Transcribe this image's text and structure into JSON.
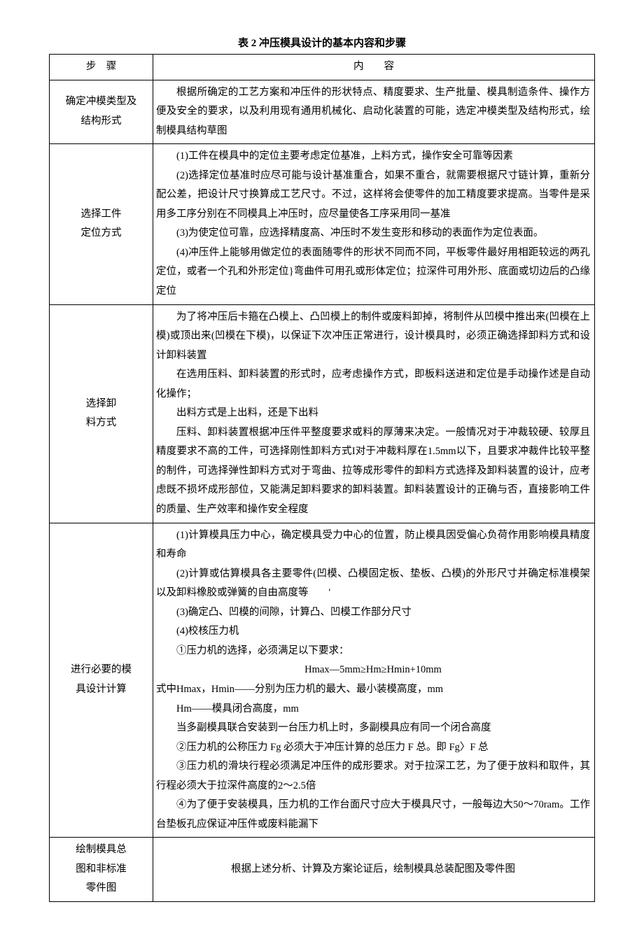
{
  "title": "表 2 冲压模具设计的基本内容和步骤",
  "header": {
    "step": "步　骤",
    "content": "内　　容"
  },
  "rows": [
    {
      "step_lines": [
        "确定冲模类型及",
        "结构形式"
      ],
      "content_lines": [
        {
          "cls": "indent",
          "text": "根据所确定的工艺方案和冲压件的形状特点、精度要求、生产批量、模具制造条件、操作方便及安全的要求，以及利用现有通用机械化、启动化装置的可能，选定冲模类型及结构形式，绘制模具结构草图"
        }
      ]
    },
    {
      "step_lines": [
        "选择工件",
        "定位方式"
      ],
      "content_lines": [
        {
          "cls": "indent",
          "text": "(1)工件在模具中的定位主要考虑定位基准，上料方式，操作安全可靠等因素"
        },
        {
          "cls": "indent",
          "text": "(2)选择定位基准时应尽可能与设计基准重合，如果不重合，就需要根据尺寸链计算，重新分配公差，把设计尺寸换算成工艺尺寸。不过，这样将会使零件的加工精度要求提高。当零件是采用多工序分别在不同模具上冲压时，应尽量使各工序采用同一基准"
        },
        {
          "cls": "indent",
          "text": "(3)为使定位可靠，应选择精度高、冲压时不发生变形和移动的表面作为定位表面。"
        },
        {
          "cls": "indent",
          "text": "(4)冲压件上能够用做定位的表面随零件的形状不同而不同，平板零件最好用相距较远的两孔定位，或者一个孔和外形定位}弯曲件可用孔或形体定位；拉深件可用外形、底面或切边后的凸缘定位"
        }
      ]
    },
    {
      "step_lines": [
        "选择卸",
        "料方式"
      ],
      "content_lines": [
        {
          "cls": "indent",
          "text": "为了将冲压后卡箍在凸模上、凸凹模上的制件或废料卸掉，将制件从凹模中推出来(凹模在上模)或顶出来(凹模在下模)，以保证下次冲压正常进行，设计模具时，必须正确选择卸料方式和设计卸料装置"
        },
        {
          "cls": "indent",
          "text": "在选用压料、卸料装置的形式时，应考虑操作方式，即板料送进和定位是手动操作述是自动化操作；"
        },
        {
          "cls": "indent",
          "text": "出料方式是上出料，还是下出料"
        },
        {
          "cls": "indent",
          "text": "压料、卸料装置根据冲压件平整度要求或料的厚薄来决定。一般情况对于冲裁较硬、较厚且精度要求不高的工件，可选择刚性卸料方式I对于冲裁料厚在1.5mm以下，且要求冲裁件比较平整的制件，可选择弹性卸料方式对于弯曲、拉等成形零件的卸料方式选择及卸料装置的设计，应考虑既不损坏成形部位，又能满足卸料要求的卸料装置。卸料装置设计的正确与否，直接影响工件的质量、生产效率和操作安全程度"
        }
      ]
    },
    {
      "step_lines": [
        "进行必要的模",
        "具设计计算"
      ],
      "content_lines": [
        {
          "cls": "indent",
          "text": "(1)计算模具压力中心，确定模具受力中心的位置，防止模具因受偏心负荷作用影响模具精度和寿命"
        },
        {
          "cls": "indent",
          "text": "(2)计算或估算模具各主要零件(凹模、凸模固定板、垫板、凸模)的外形尺寸并确定标准模架以及卸料橡胶或弹簧的自由高度等　　'"
        },
        {
          "cls": "indent",
          "text": "(3)确定凸、凹模的间隙，计算凸、凹模工作部分尺寸"
        },
        {
          "cls": "indent",
          "text": "(4)校核压力机"
        },
        {
          "cls": "indent",
          "text": "①压力机的选择，必须满足以下要求："
        },
        {
          "cls": "formula",
          "text": "Hmax—5mm≥Hm≥Hmin+10mm"
        },
        {
          "cls": "",
          "text": "式中Hmax，Hmin——分别为压力机的最大、最小装模高度，mm"
        },
        {
          "cls": "indent",
          "text": "Hm——模具闭合高度，mm"
        },
        {
          "cls": "indent",
          "text": "当多副模具联合安装到一台压力机上时，多副模具应有同一个闭合高度"
        },
        {
          "cls": "indent",
          "text": "②压力机的公称压力 Fg 必须大于冲压计算的总压力 F 总。即 Fg〉F 总"
        },
        {
          "cls": "indent",
          "text": "③压力机的滑块行程必须满足冲压件的成形要求。对于拉深工艺，为了便于放料和取件，其行程必须大于拉深件高度的2～2.5倍"
        },
        {
          "cls": "indent",
          "text": "④为了便于安装模具，压力机的工作台面尺寸应大于模具尺寸，一般每边大50～70ram。工作台垫板孔应保证冲压件或废料能漏下"
        }
      ]
    },
    {
      "step_lines": [
        "绘制模具总",
        "图和非标准",
        "零件图"
      ],
      "content_lines": [
        {
          "cls": "center-cell",
          "text": "根据上述分析、计算及方案论证后，绘制模具总装配图及零件图"
        }
      ]
    }
  ]
}
